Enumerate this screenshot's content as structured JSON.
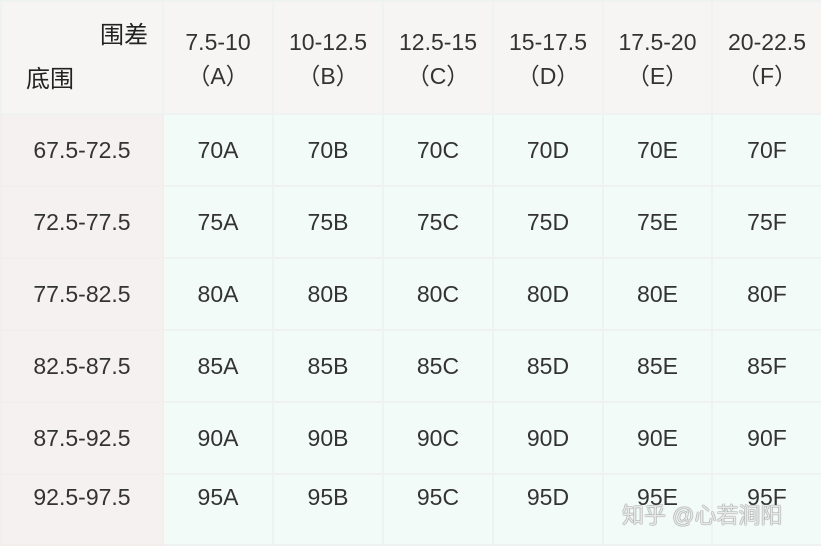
{
  "corner": {
    "top": "围差",
    "bottom": "底围"
  },
  "columns": [
    {
      "range": "7.5-10",
      "cup": "（A）"
    },
    {
      "range": "10-12.5",
      "cup": "（B）"
    },
    {
      "range": "12.5-15",
      "cup": "（C）"
    },
    {
      "range": "15-17.5",
      "cup": "（D）"
    },
    {
      "range": "17.5-20",
      "cup": "（E）"
    },
    {
      "range": "20-22.5",
      "cup": "（F）"
    }
  ],
  "rows": [
    {
      "label": "67.5-72.5",
      "cells": [
        "70A",
        "70B",
        "70C",
        "70D",
        "70E",
        "70F"
      ]
    },
    {
      "label": "72.5-77.5",
      "cells": [
        "75A",
        "75B",
        "75C",
        "75D",
        "75E",
        "75F"
      ]
    },
    {
      "label": "77.5-82.5",
      "cells": [
        "80A",
        "80B",
        "80C",
        "80D",
        "80E",
        "80F"
      ]
    },
    {
      "label": "82.5-87.5",
      "cells": [
        "85A",
        "85B",
        "85C",
        "85D",
        "85E",
        "85F"
      ]
    },
    {
      "label": "87.5-92.5",
      "cells": [
        "90A",
        "90B",
        "90C",
        "90D",
        "90E",
        "90F"
      ]
    },
    {
      "label": "92.5-97.5",
      "cells": [
        "95A",
        "95B",
        "95C",
        "95D",
        "95E",
        "95F"
      ]
    }
  ],
  "watermark": "知乎 @心若涧阳"
}
